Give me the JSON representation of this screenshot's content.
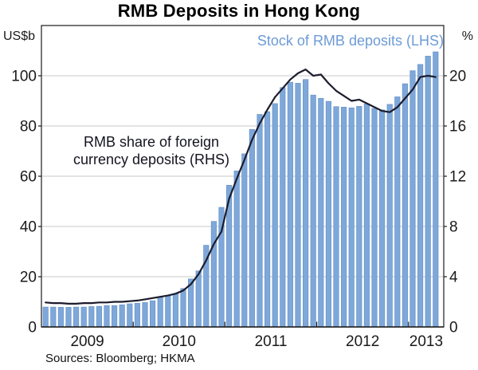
{
  "title": "RMB Deposits in Hong Kong",
  "legend": {
    "stock_label": "Stock of RMB deposits (LHS)"
  },
  "annotation": {
    "line1": "RMB share of foreign",
    "line2": "currency deposits (RHS)"
  },
  "source": "Sources: Bloomberg; HKMA",
  "colors": {
    "bar_fill": "#7ea8da",
    "bar_stroke": "#6b94c9",
    "line": "#1c1c2c",
    "legend_text": "#6d9bd6",
    "gridline": "#c9c9c9",
    "axis": "#1a1a1a"
  },
  "chart_data": {
    "type": "bar",
    "title": "RMB Deposits in Hong Kong",
    "x": {
      "start": "2009-01",
      "end": "2013-04",
      "frequency": "monthly"
    },
    "left_axis": {
      "unit": "US$b",
      "min": 0,
      "max": 120,
      "tick_labels": [
        0,
        20,
        40,
        60,
        80,
        100
      ],
      "grid": true
    },
    "right_axis": {
      "unit": "%",
      "min": 0,
      "max": 24,
      "tick_labels": [
        0,
        4,
        8,
        12,
        16,
        20
      ]
    },
    "x_axis": {
      "year_labels": [
        "2009",
        "2010",
        "2011",
        "2012",
        "2013"
      ],
      "year_tick_month_indices": [
        12,
        24,
        36,
        48
      ]
    },
    "series": [
      {
        "name": "Stock of RMB deposits (LHS)",
        "type": "bar",
        "axis": "left",
        "values": [
          7.9,
          7.9,
          7.8,
          7.8,
          7.9,
          7.9,
          8.1,
          8.2,
          8.5,
          8.5,
          8.8,
          9.2,
          9.4,
          9.7,
          10.4,
          11.9,
          12.5,
          13.3,
          15.3,
          19.1,
          22.3,
          32.5,
          42.0,
          47.6,
          56.4,
          62.1,
          68.9,
          78.6,
          84.6,
          85.7,
          88.9,
          95.3,
          97.4,
          97.0,
          98.5,
          92.3,
          91.0,
          89.8,
          87.7,
          87.5,
          87.2,
          87.8,
          88.8,
          87.0,
          86.4,
          88.6,
          91.6,
          96.8,
          102.0,
          104.5,
          107.8,
          109.5
        ]
      },
      {
        "name": "RMB share of foreign currency deposits (RHS)",
        "type": "line",
        "axis": "right",
        "values": [
          1.95,
          1.9,
          1.9,
          1.85,
          1.85,
          1.9,
          1.9,
          1.95,
          1.95,
          2.0,
          2.0,
          2.05,
          2.1,
          2.2,
          2.3,
          2.4,
          2.5,
          2.65,
          2.9,
          3.4,
          4.2,
          5.3,
          6.6,
          7.6,
          10.2,
          11.8,
          13.3,
          14.9,
          16.2,
          17.3,
          18.3,
          19.0,
          19.7,
          20.2,
          20.5,
          20.0,
          20.1,
          19.4,
          18.8,
          18.4,
          18.0,
          18.1,
          17.8,
          17.5,
          17.2,
          17.1,
          17.5,
          18.2,
          18.9,
          19.9,
          20.0,
          19.9
        ]
      }
    ],
    "source": "Sources: Bloomberg; HKMA",
    "legend_position": "top-right-inside"
  }
}
